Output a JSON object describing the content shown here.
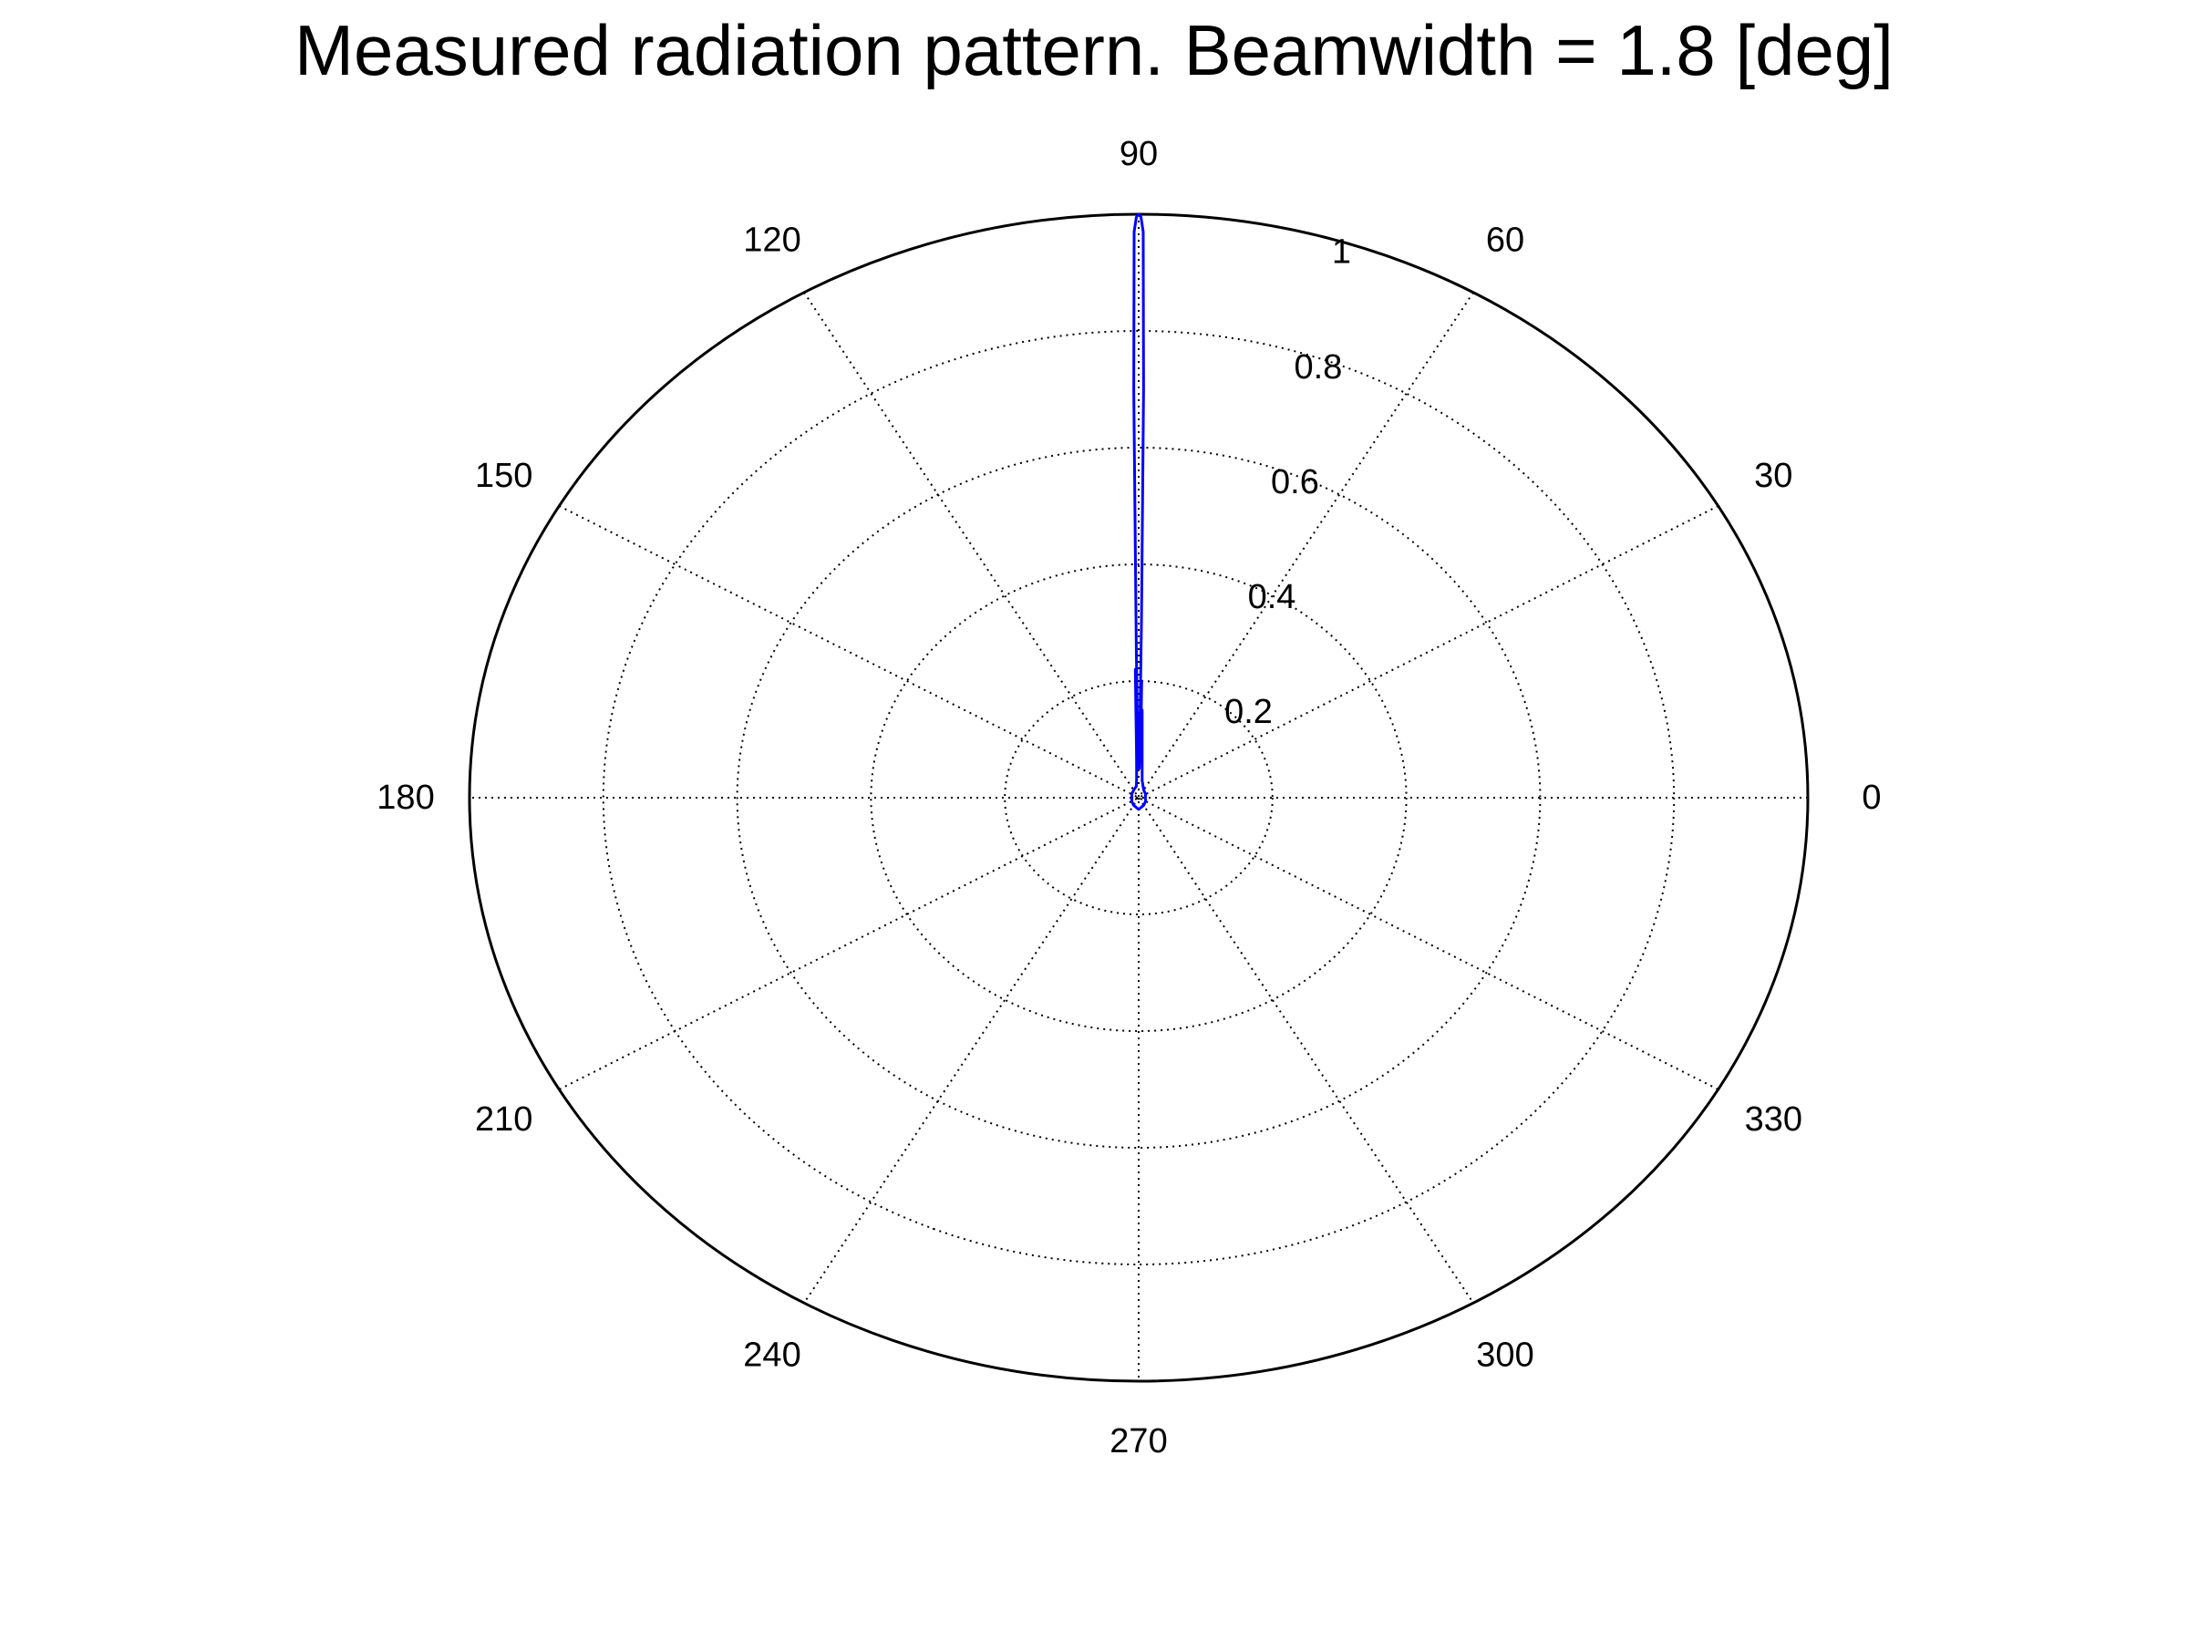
{
  "chart_data": {
    "type": "polar-line",
    "title": "Measured radiation pattern. Beamwidth = 1.8 [deg]",
    "grid": true,
    "angle_unit": "deg",
    "angular_ticks": [
      0,
      30,
      60,
      90,
      120,
      150,
      180,
      210,
      240,
      270,
      300,
      330
    ],
    "angular_tick_labels": [
      "0",
      "30",
      "60",
      "90",
      "120",
      "150",
      "180",
      "210",
      "240",
      "270",
      "300",
      "330"
    ],
    "radial_ticks": [
      0.2,
      0.4,
      0.6,
      0.8,
      1
    ],
    "radial_tick_labels": [
      "0.2",
      "0.4",
      "0.6",
      "0.8",
      "1"
    ],
    "rlim": [
      0,
      1
    ],
    "series": [
      {
        "color": "#0000ff",
        "theta": [
          0,
          30,
          60,
          80,
          85,
          87,
          88,
          88.4,
          88.7,
          89,
          89.2,
          89.4,
          89.6,
          89.8,
          90,
          90.2,
          90.4,
          90.6,
          90.8,
          91,
          91.3,
          91.6,
          92,
          93,
          95,
          100,
          120,
          150,
          180,
          210,
          240,
          270,
          300,
          330,
          360
        ],
        "r": [
          0.01,
          0.012,
          0.015,
          0.03,
          0.06,
          0.1,
          0.15,
          0.13,
          0.2,
          0.05,
          0.3,
          0.7,
          0.97,
          0.995,
          1.0,
          0.995,
          0.97,
          0.7,
          0.25,
          0.05,
          0.22,
          0.15,
          0.1,
          0.06,
          0.035,
          0.02,
          0.015,
          0.012,
          0.01,
          0.012,
          0.015,
          0.02,
          0.015,
          0.012,
          0.01
        ]
      }
    ]
  }
}
